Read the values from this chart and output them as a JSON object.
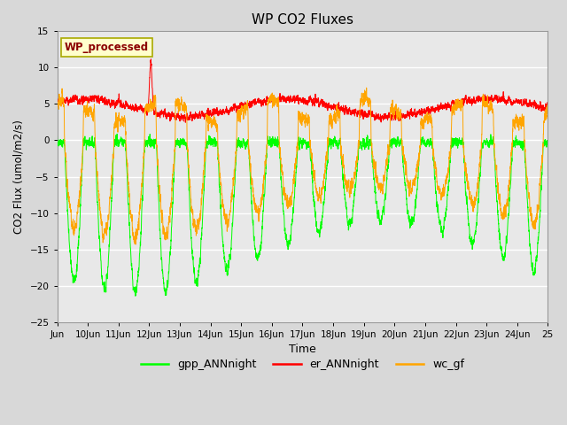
{
  "title": "WP CO2 Fluxes",
  "xlabel": "Time",
  "ylabel_plain": "CO2 Flux (umol/m2/s)",
  "xlim_days": [
    9,
    25
  ],
  "ylim": [
    -25,
    15
  ],
  "yticks": [
    -25,
    -20,
    -15,
    -10,
    -5,
    0,
    5,
    10,
    15
  ],
  "xtick_labels": [
    "Jun",
    "10Jun",
    "11Jun",
    "12Jun",
    "13Jun",
    "14Jun",
    "15Jun",
    "16Jun",
    "17Jun",
    "18Jun",
    "19Jun",
    "20Jun",
    "21Jun",
    "22Jun",
    "23Jun",
    "24Jun",
    "25"
  ],
  "xtick_positions": [
    9,
    10,
    11,
    12,
    13,
    14,
    15,
    16,
    17,
    18,
    19,
    20,
    21,
    22,
    23,
    24,
    25
  ],
  "legend_colors": [
    "#00FF00",
    "#FF0000",
    "#FFA500"
  ],
  "legend_labels": [
    "gpp_ANNnight",
    "er_ANNnight",
    "wc_gf"
  ],
  "watermark_text": "WP_processed",
  "watermark_color": "#8B0000",
  "watermark_bg": "#FFFFCC",
  "bg_color": "#D8D8D8",
  "plot_bg_color": "#E8E8E8",
  "n_points": 3840,
  "start_day": 9.0,
  "end_day": 25.0,
  "seed": 42
}
